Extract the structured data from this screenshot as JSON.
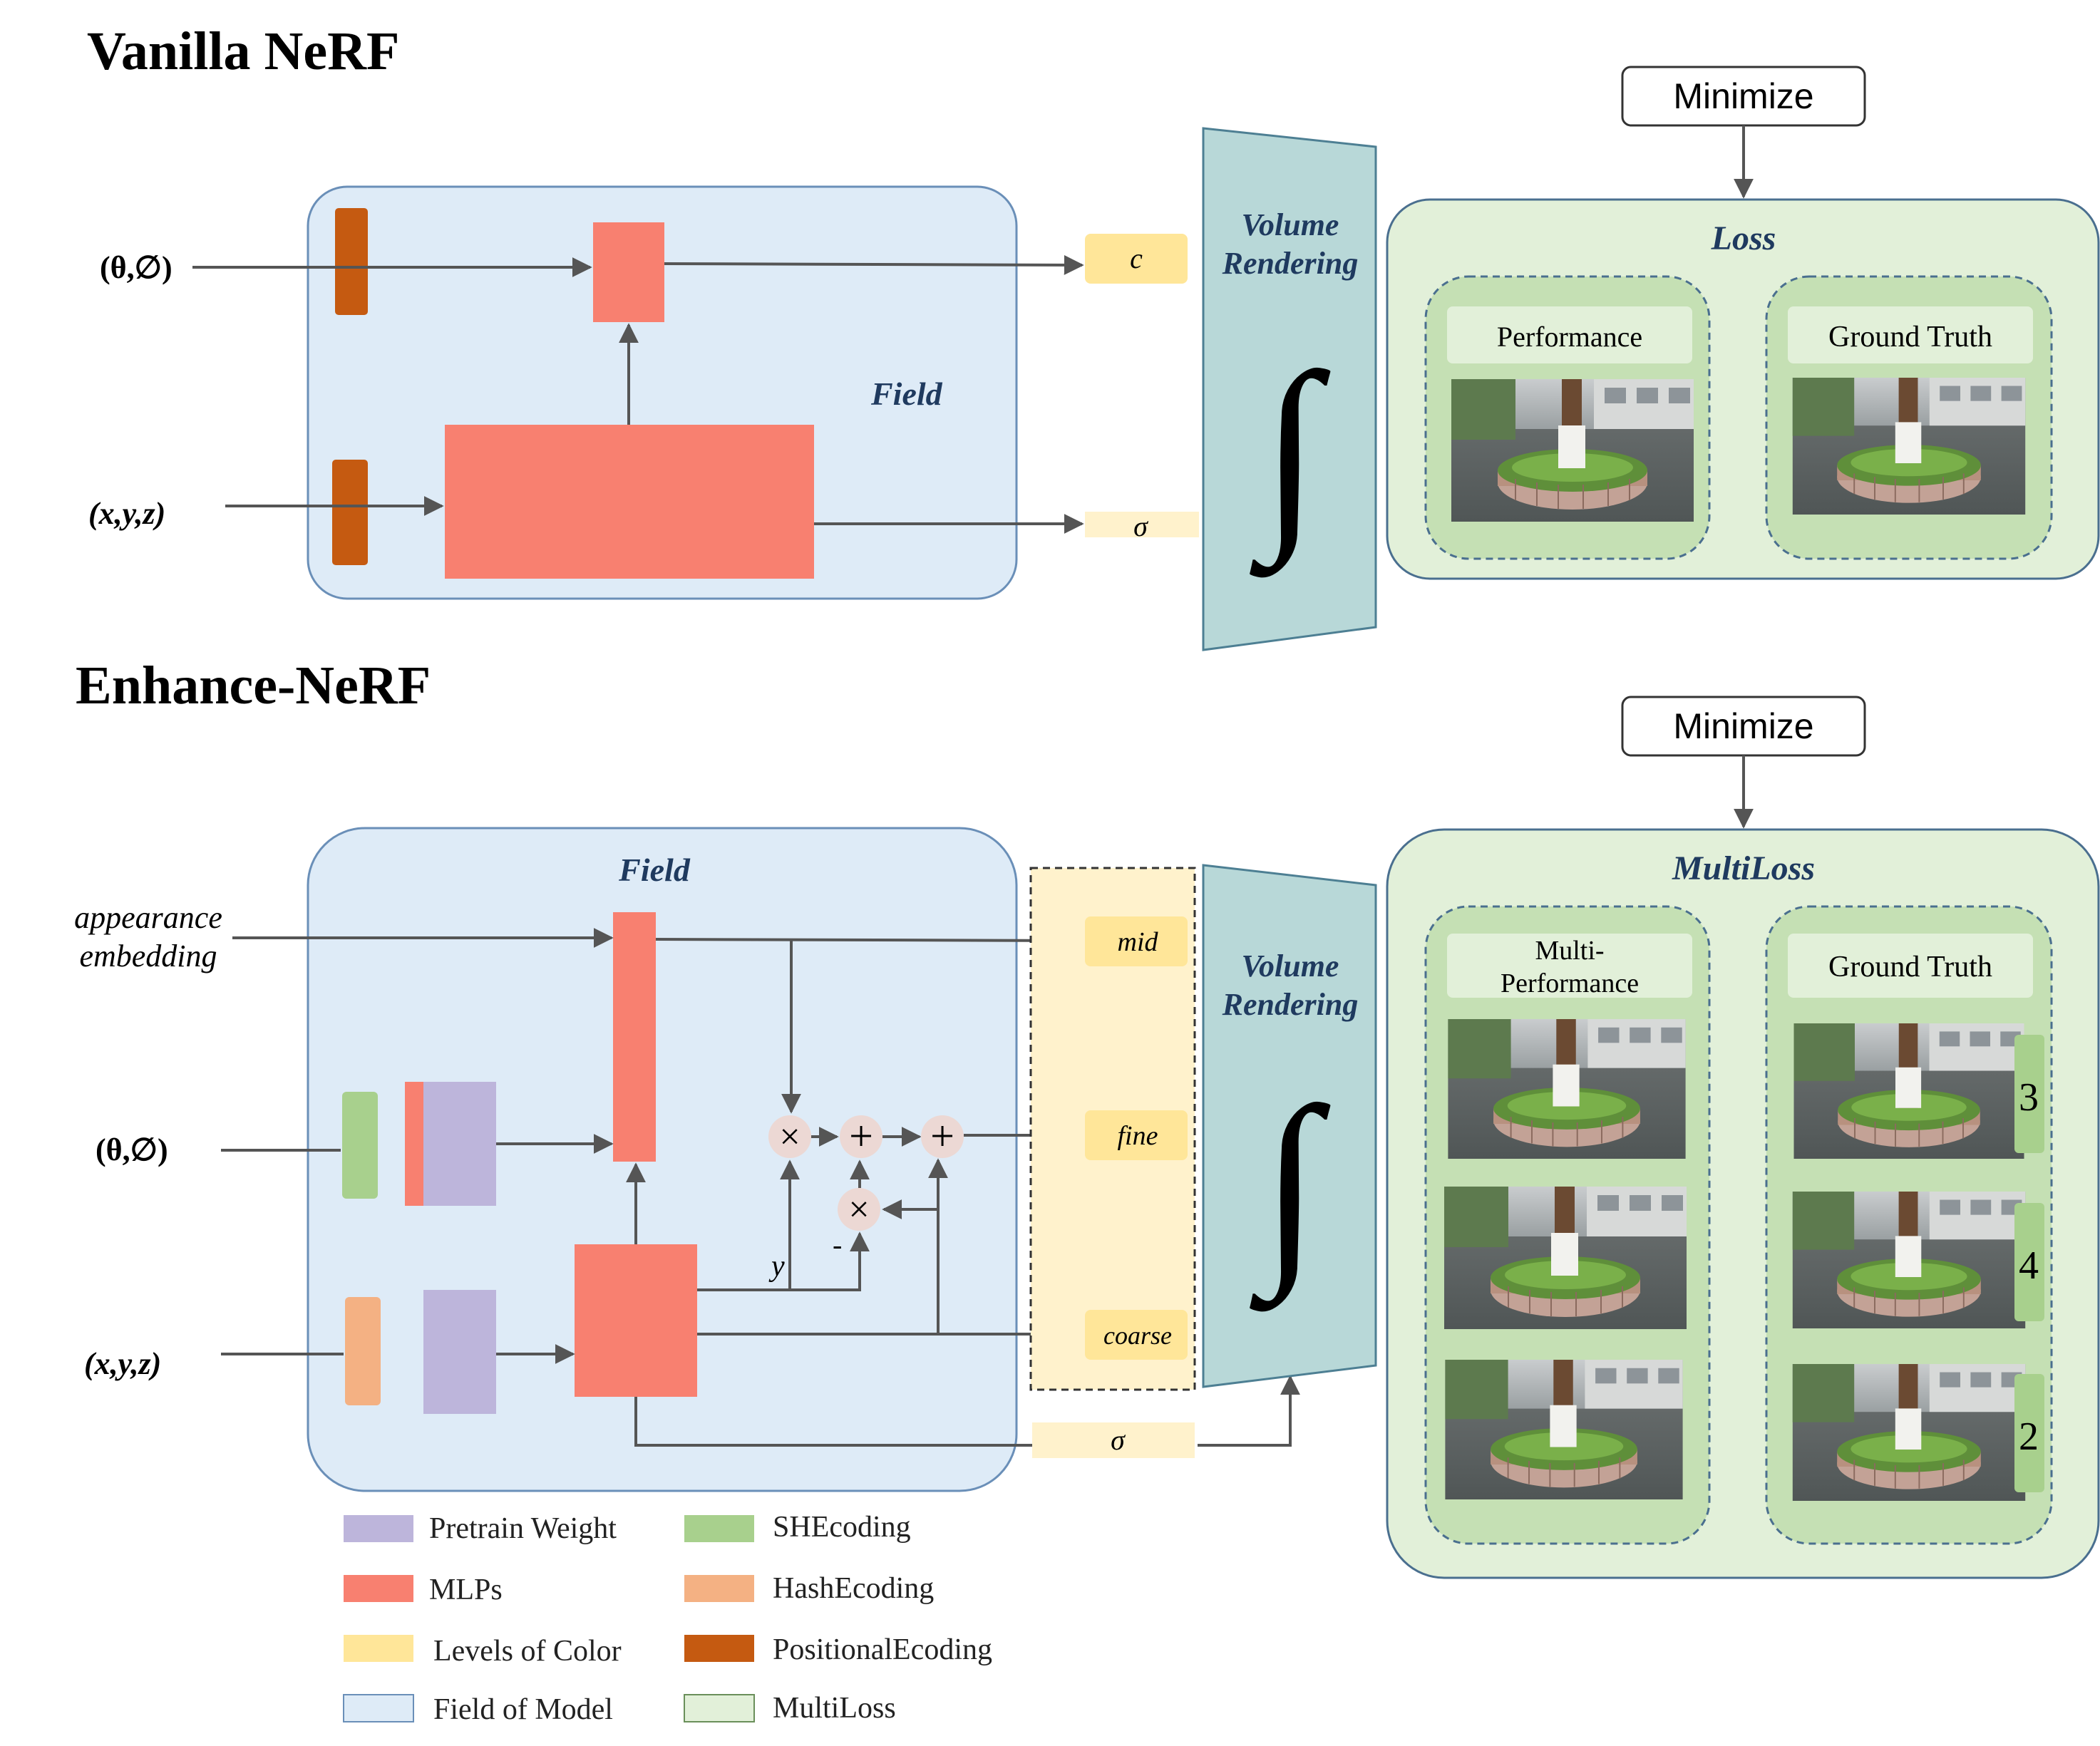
{
  "vanilla": {
    "title": "Vanilla NeRF",
    "input_dir": "(θ,∅)",
    "input_pos": "(x,y,z)",
    "field_label": "Field",
    "out_c": "c",
    "out_sigma": "σ",
    "volume_rendering": [
      "Volume",
      "Rendering"
    ],
    "integral": "∫",
    "minimize": "Minimize",
    "loss_label": "Loss",
    "performance": "Performance",
    "ground_truth": "Ground Truth"
  },
  "enhance": {
    "title": "Enhance-NeRF",
    "input_app": [
      "appearance",
      "embedding"
    ],
    "input_dir": "(θ,∅)",
    "input_pos": "(x,y,z)",
    "field_label": "Field",
    "out_mid": "mid",
    "out_fine": "fine",
    "out_coarse": "coarse",
    "out_sigma": "σ",
    "op_times": "×",
    "op_plus": "+",
    "var_y": "y",
    "minus": "-",
    "volume_rendering": [
      "Volume",
      "Rendering"
    ],
    "integral": "∫",
    "minimize": "Minimize",
    "loss_label": "MultiLoss",
    "performance": [
      "Multi-",
      "Performance"
    ],
    "ground_truth": "Ground Truth",
    "level_numbers": [
      "3",
      "4",
      "2"
    ]
  },
  "legend": [
    {
      "label": "Pretrain Weight",
      "color": "#bdb5db"
    },
    {
      "label": "SHEcoding",
      "color": "#a8d08d"
    },
    {
      "label": "MLPs",
      "color": "#f88070"
    },
    {
      "label": "HashEcoding",
      "color": "#f4b183"
    },
    {
      "label": "Levels of Color",
      "color": "#ffe699"
    },
    {
      "label": "PositionalEcoding",
      "color": "#c55a11"
    },
    {
      "label": "Field of Model",
      "color": "#deebf7"
    },
    {
      "label": "MultiLoss",
      "color": "#e2f0d9"
    }
  ],
  "colors": {
    "field": "#deebf7",
    "field_border": "#8aaed0",
    "mlp": "#f88070",
    "positional": "#c55a11",
    "sh": "#a8d08d",
    "hash": "#f4b183",
    "pretrain": "#bdb5db",
    "levels": "#ffe699",
    "levels_light": "#fff2cc",
    "volume": "#b8d8d8",
    "multiloss": "#e2f0d9",
    "multiloss_inner": "#c5e0b4",
    "title_blue": "#1f3a5f"
  }
}
